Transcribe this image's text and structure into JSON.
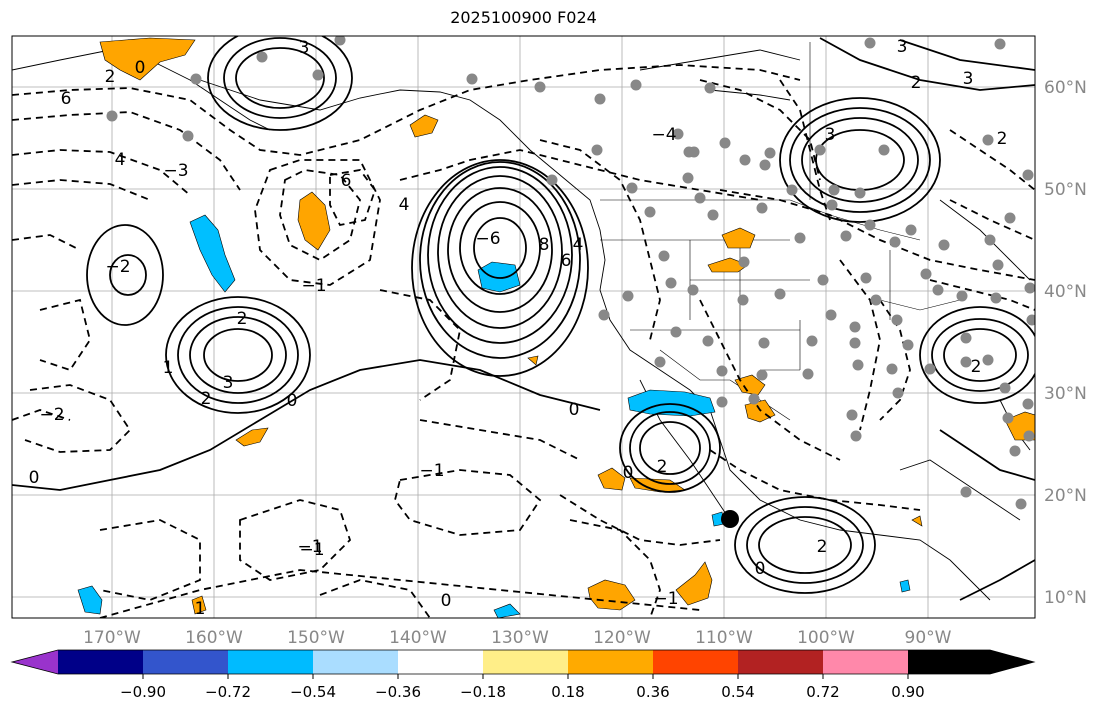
{
  "title": "2025100900 F024",
  "lon_labels": [
    "170°W",
    "160°W",
    "150°W",
    "140°W",
    "130°W",
    "120°W",
    "110°W",
    "100°W",
    "90°W"
  ],
  "lat_labels": [
    "60°N",
    "50°N",
    "40°N",
    "30°N",
    "20°N",
    "10°N"
  ],
  "colorbar": {
    "colors": [
      "#9933cc",
      "#000088",
      "#3355cc",
      "#00bbff",
      "#aaddff",
      "#ffffff",
      "#ffee88",
      "#ffaa00",
      "#ff4400",
      "#b22222",
      "#ff88aa"
    ],
    "tick_labels": [
      "−0.90",
      "−0.72",
      "−0.54",
      "−0.36",
      "−0.18",
      "0.18",
      "0.36",
      "0.54",
      "0.72",
      "0.90"
    ]
  },
  "contour_labels": [
    "3",
    "0",
    "2",
    "6",
    "4",
    "−3",
    "−4",
    "3",
    "−2",
    "−1",
    "−1",
    "0",
    "1",
    "2",
    "3",
    "2",
    "−2",
    "−6",
    "0",
    "0",
    "8",
    "6",
    "4",
    "0",
    "2",
    "−1",
    "1",
    "0",
    "2",
    "2",
    "−1",
    "0",
    "−1",
    "6",
    "4",
    "3",
    "2",
    "3",
    "2"
  ],
  "colors": {
    "grid": "#aaaaaa",
    "label": "#888888",
    "positive": "#ffa500",
    "negative": "#00bfff",
    "station": "#888888"
  }
}
